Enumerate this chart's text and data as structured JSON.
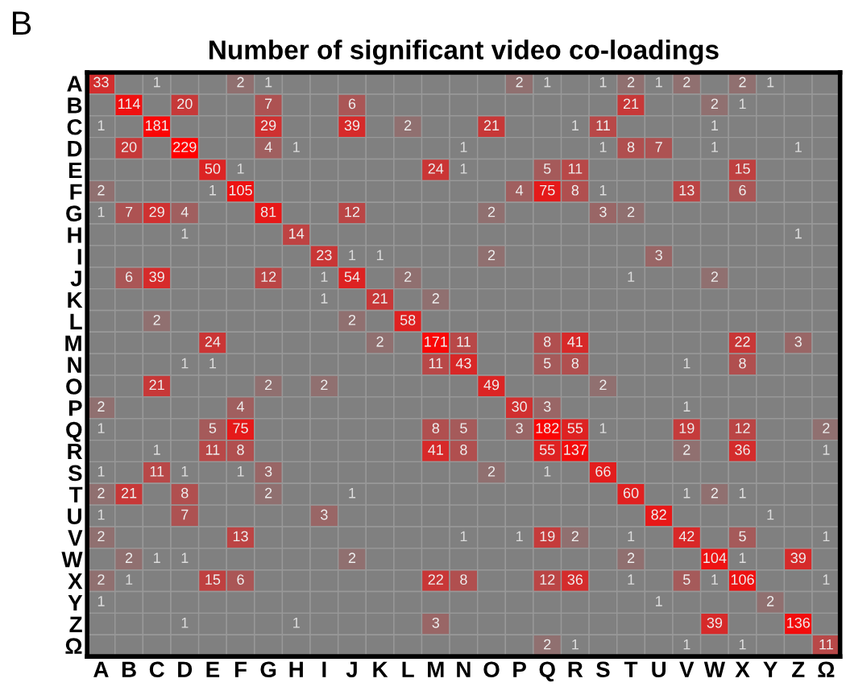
{
  "chart_data": {
    "type": "heatmap",
    "title": "Number of significant video co-loadings",
    "annotations": [
      "B"
    ],
    "categories": [
      "A",
      "B",
      "C",
      "D",
      "E",
      "F",
      "G",
      "H",
      "I",
      "J",
      "K",
      "L",
      "M",
      "N",
      "O",
      "P",
      "Q",
      "R",
      "S",
      "T",
      "U",
      "V",
      "W",
      "X",
      "Y",
      "Z",
      "Ω"
    ],
    "y_categories": [
      "A",
      "B",
      "C",
      "D",
      "E",
      "F",
      "G",
      "H",
      "I",
      "J",
      "K",
      "L",
      "M",
      "N",
      "O",
      "P",
      "Q",
      "R",
      "S",
      "T",
      "U",
      "V",
      "W",
      "X",
      "Y",
      "Z",
      "Ω"
    ],
    "data_labels": true,
    "cells": [
      [
        33,
        null,
        1,
        null,
        null,
        2,
        1,
        null,
        null,
        null,
        null,
        null,
        null,
        null,
        null,
        2,
        1,
        null,
        1,
        2,
        1,
        2,
        null,
        2,
        1,
        null,
        null
      ],
      [
        null,
        114,
        null,
        20,
        null,
        null,
        7,
        null,
        null,
        6,
        null,
        null,
        null,
        null,
        null,
        null,
        null,
        null,
        null,
        21,
        null,
        null,
        2,
        1,
        null,
        null,
        null
      ],
      [
        1,
        null,
        181,
        null,
        null,
        null,
        29,
        null,
        null,
        39,
        null,
        2,
        null,
        null,
        21,
        null,
        null,
        1,
        11,
        null,
        null,
        null,
        1,
        null,
        null,
        null,
        null
      ],
      [
        null,
        20,
        null,
        229,
        null,
        null,
        4,
        1,
        null,
        null,
        null,
        null,
        null,
        1,
        null,
        null,
        null,
        null,
        1,
        8,
        7,
        null,
        1,
        null,
        null,
        1,
        null
      ],
      [
        null,
        null,
        null,
        null,
        50,
        1,
        null,
        null,
        null,
        null,
        null,
        null,
        24,
        1,
        null,
        null,
        5,
        11,
        null,
        null,
        null,
        null,
        null,
        15,
        null,
        null,
        null
      ],
      [
        2,
        null,
        null,
        null,
        1,
        105,
        null,
        null,
        null,
        null,
        null,
        null,
        null,
        null,
        null,
        4,
        75,
        8,
        1,
        null,
        null,
        13,
        null,
        6,
        null,
        null,
        null
      ],
      [
        1,
        7,
        29,
        4,
        null,
        null,
        81,
        null,
        null,
        12,
        null,
        null,
        null,
        null,
        2,
        null,
        null,
        null,
        3,
        2,
        null,
        null,
        null,
        null,
        null,
        null,
        null
      ],
      [
        null,
        null,
        null,
        1,
        null,
        null,
        null,
        14,
        null,
        null,
        null,
        null,
        null,
        null,
        null,
        null,
        null,
        null,
        null,
        null,
        null,
        null,
        null,
        null,
        null,
        1,
        null
      ],
      [
        null,
        null,
        null,
        null,
        null,
        null,
        null,
        null,
        23,
        1,
        1,
        null,
        null,
        null,
        2,
        null,
        null,
        null,
        null,
        null,
        3,
        null,
        null,
        null,
        null,
        null,
        null
      ],
      [
        null,
        6,
        39,
        null,
        null,
        null,
        12,
        null,
        1,
        54,
        null,
        2,
        null,
        null,
        null,
        null,
        null,
        null,
        null,
        1,
        null,
        null,
        2,
        null,
        null,
        null,
        null
      ],
      [
        null,
        null,
        null,
        null,
        null,
        null,
        null,
        null,
        1,
        null,
        21,
        null,
        2,
        null,
        null,
        null,
        null,
        null,
        null,
        null,
        null,
        null,
        null,
        null,
        null,
        null,
        null
      ],
      [
        null,
        null,
        2,
        null,
        null,
        null,
        null,
        null,
        null,
        2,
        null,
        58,
        null,
        null,
        null,
        null,
        null,
        null,
        null,
        null,
        null,
        null,
        null,
        null,
        null,
        null,
        null
      ],
      [
        null,
        null,
        null,
        null,
        24,
        null,
        null,
        null,
        null,
        null,
        2,
        null,
        171,
        11,
        null,
        null,
        8,
        41,
        null,
        null,
        null,
        null,
        null,
        22,
        null,
        3,
        null
      ],
      [
        null,
        null,
        null,
        1,
        1,
        null,
        null,
        null,
        null,
        null,
        null,
        null,
        11,
        43,
        null,
        null,
        5,
        8,
        null,
        null,
        null,
        1,
        null,
        8,
        null,
        null,
        null
      ],
      [
        null,
        null,
        21,
        null,
        null,
        null,
        2,
        null,
        2,
        null,
        null,
        null,
        null,
        null,
        49,
        null,
        null,
        null,
        2,
        null,
        null,
        null,
        null,
        null,
        null,
        null,
        null
      ],
      [
        2,
        null,
        null,
        null,
        null,
        4,
        null,
        null,
        null,
        null,
        null,
        null,
        null,
        null,
        null,
        30,
        3,
        null,
        null,
        null,
        null,
        1,
        null,
        null,
        null,
        null,
        null
      ],
      [
        1,
        null,
        null,
        null,
        5,
        75,
        null,
        null,
        null,
        null,
        null,
        null,
        8,
        5,
        null,
        3,
        182,
        55,
        1,
        null,
        null,
        19,
        null,
        12,
        null,
        null,
        2
      ],
      [
        null,
        null,
        1,
        null,
        11,
        8,
        null,
        null,
        null,
        null,
        null,
        null,
        41,
        8,
        null,
        null,
        55,
        137,
        null,
        null,
        null,
        2,
        null,
        36,
        null,
        null,
        1
      ],
      [
        1,
        null,
        11,
        1,
        null,
        1,
        3,
        null,
        null,
        null,
        null,
        null,
        null,
        null,
        2,
        null,
        1,
        null,
        66,
        null,
        null,
        null,
        null,
        null,
        null,
        null,
        null
      ],
      [
        2,
        21,
        null,
        8,
        null,
        null,
        2,
        null,
        null,
        1,
        null,
        null,
        null,
        null,
        null,
        null,
        null,
        null,
        null,
        60,
        null,
        1,
        2,
        1,
        null,
        null,
        null
      ],
      [
        1,
        null,
        null,
        7,
        null,
        null,
        null,
        null,
        3,
        null,
        null,
        null,
        null,
        null,
        null,
        null,
        null,
        null,
        null,
        null,
        82,
        null,
        null,
        null,
        1,
        null,
        null
      ],
      [
        2,
        null,
        null,
        null,
        null,
        13,
        null,
        null,
        null,
        null,
        null,
        null,
        null,
        1,
        null,
        1,
        19,
        2,
        null,
        1,
        null,
        42,
        null,
        5,
        null,
        null,
        1
      ],
      [
        null,
        2,
        1,
        1,
        null,
        null,
        null,
        null,
        null,
        2,
        null,
        null,
        null,
        null,
        null,
        null,
        null,
        null,
        null,
        2,
        null,
        null,
        104,
        1,
        null,
        39,
        null
      ],
      [
        2,
        1,
        null,
        null,
        15,
        6,
        null,
        null,
        null,
        null,
        null,
        null,
        22,
        8,
        null,
        null,
        12,
        36,
        null,
        1,
        null,
        5,
        1,
        106,
        null,
        null,
        1
      ],
      [
        1,
        null,
        null,
        null,
        null,
        null,
        null,
        null,
        null,
        null,
        null,
        null,
        null,
        null,
        null,
        null,
        null,
        null,
        null,
        null,
        1,
        null,
        null,
        null,
        2,
        null,
        null
      ],
      [
        null,
        null,
        null,
        1,
        null,
        null,
        null,
        1,
        null,
        null,
        null,
        null,
        3,
        null,
        null,
        null,
        null,
        null,
        null,
        null,
        null,
        null,
        39,
        null,
        null,
        136,
        null
      ],
      [
        null,
        null,
        null,
        null,
        null,
        null,
        null,
        null,
        null,
        null,
        null,
        null,
        null,
        null,
        null,
        null,
        2,
        1,
        null,
        null,
        null,
        1,
        null,
        1,
        null,
        null,
        11
      ]
    ]
  }
}
